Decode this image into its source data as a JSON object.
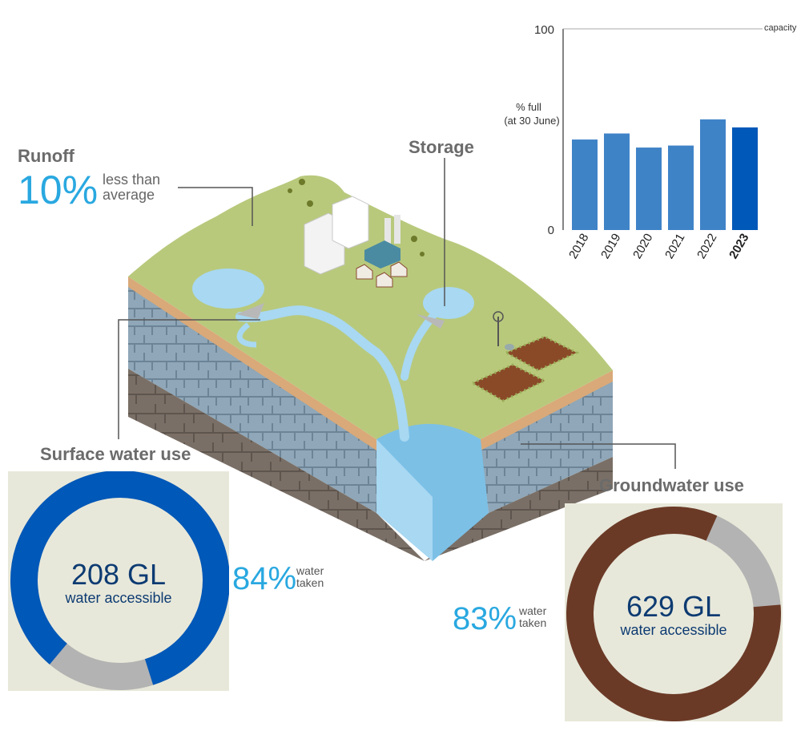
{
  "runoff": {
    "heading": "Runoff",
    "percent": "10%",
    "note_line1": "less than",
    "note_line2": "average"
  },
  "storage": {
    "heading": "Storage"
  },
  "surface_water": {
    "heading": "Surface water use",
    "accessible_value": "208 GL",
    "accessible_label": "water accessible",
    "taken_percent": "84%",
    "taken_line1": "water",
    "taken_line2": "taken",
    "taken_fraction": 0.84,
    "color_taken": "#0058b8",
    "color_remaining": "#b3b3b3"
  },
  "groundwater": {
    "heading": "Groundwater use",
    "accessible_value": "629 GL",
    "accessible_label": "water accessible",
    "taken_percent": "83%",
    "taken_line1": "water",
    "taken_line2": "taken",
    "taken_fraction": 0.83,
    "color_taken": "#6b3a26",
    "color_remaining": "#b3b3b3"
  },
  "chart_data": {
    "type": "bar",
    "ylabel_line1": "% full",
    "ylabel_line2": "(at 30 June)",
    "capacity_label": "capacity",
    "ylim": [
      0,
      100
    ],
    "yticks": [
      "0",
      "100"
    ],
    "categories": [
      "2018",
      "2019",
      "2020",
      "2021",
      "2022",
      "2023"
    ],
    "values": [
      45,
      48,
      41,
      42,
      55,
      51
    ],
    "highlight": "2023",
    "colors": {
      "bar": "#3f83c7",
      "highlight": "#0058b8"
    }
  }
}
